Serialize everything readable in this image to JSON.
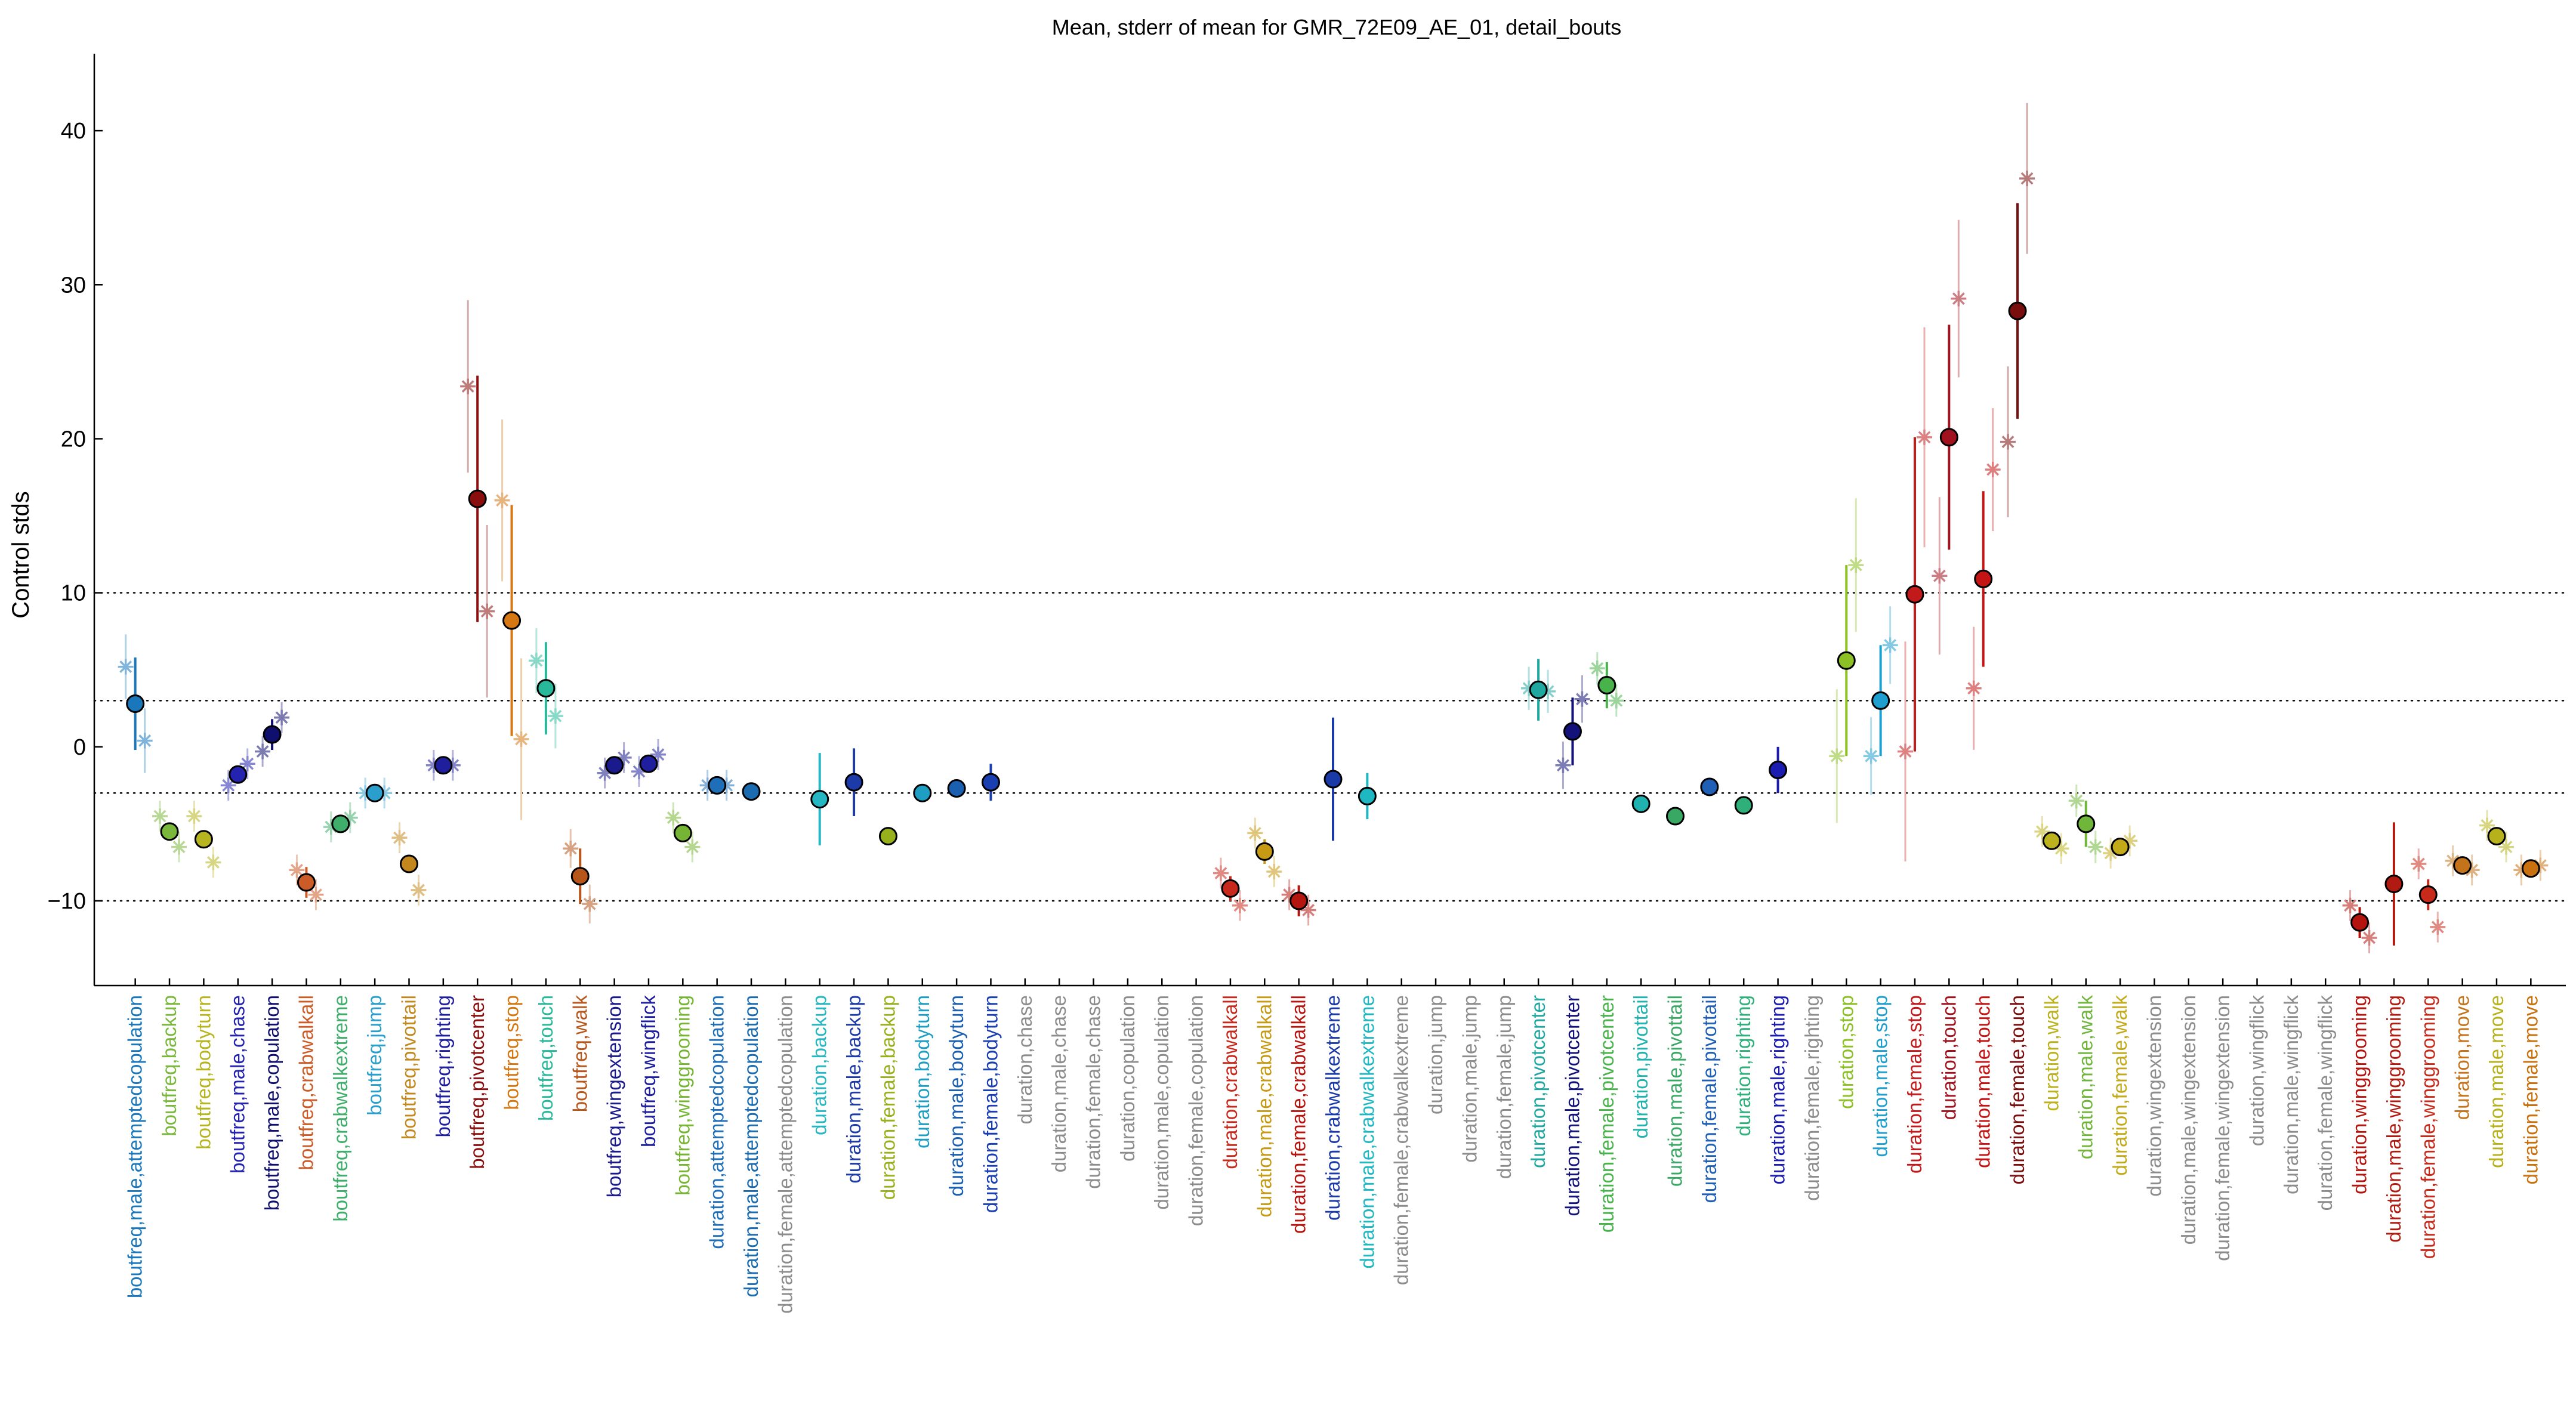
{
  "chart_data": {
    "type": "scatter",
    "title": "Mean, stderr of mean for GMR_72E09_AE_01, detail_bouts",
    "ylabel": "Control stds",
    "xlabel": "",
    "ylim": [
      -15.5,
      45
    ],
    "yticks": [
      -10,
      0,
      10,
      20,
      30,
      40
    ],
    "reference_lines": [
      -10,
      -3,
      3,
      10
    ],
    "grid": false,
    "legend": "none",
    "categories": [
      {
        "label": "boutfreq,male,attemptedcopulation",
        "color": "#1a77bb",
        "mean": 2.8,
        "err": 3.0,
        "male": 5.2,
        "female": 0.4
      },
      {
        "label": "boutfreq,backup",
        "color": "#7ab83c",
        "mean": -5.5,
        "err": 0.4,
        "male": -4.5,
        "female": -6.5
      },
      {
        "label": "boutfreq,bodyturn",
        "color": "#b7b51f",
        "mean": -6.0,
        "err": 0.4,
        "male": -4.5,
        "female": -7.5
      },
      {
        "label": "boutfreq,male,chase",
        "color": "#2323b0",
        "mean": -1.8,
        "err": 0.2,
        "male": -2.5,
        "female": -1.1
      },
      {
        "label": "boutfreq,male,copulation",
        "color": "#0f0f6e",
        "mean": 0.8,
        "err": 1.0,
        "male": -0.3,
        "female": 1.9
      },
      {
        "label": "boutfreq,crabwalkall",
        "color": "#cc5c27",
        "mean": -8.8,
        "err": 1.0,
        "male": -8.0,
        "female": -9.6
      },
      {
        "label": "boutfreq,crabwalkextreme",
        "color": "#3fae6a",
        "mean": -5.0,
        "err": 0.2,
        "male": -5.2,
        "female": -4.6
      },
      {
        "label": "boutfreq,jump",
        "color": "#2a9fcd",
        "mean": -3.0,
        "err": 0.1,
        "male": -3.0,
        "female": -3.0
      },
      {
        "label": "boutfreq,pivottail",
        "color": "#c2881e",
        "mean": -7.6,
        "err": 0.3,
        "male": -5.9,
        "female": -9.3
      },
      {
        "label": "boutfreq,righting",
        "color": "#1f1f9e",
        "mean": -1.2,
        "err": 0.2,
        "male": -1.2,
        "female": -1.2
      },
      {
        "label": "boutfreq,pivotcenter",
        "color": "#8b0e0e",
        "mean": 16.1,
        "err": 8.0,
        "male": 23.4,
        "female": 8.8
      },
      {
        "label": "boutfreq,stop",
        "color": "#d57713",
        "mean": 8.2,
        "err": 7.5,
        "male": 16.0,
        "female": 0.5
      },
      {
        "label": "boutfreq,touch",
        "color": "#27b99a",
        "mean": 3.8,
        "err": 3.0,
        "male": 5.6,
        "female": 2.0
      },
      {
        "label": "boutfreq,walk",
        "color": "#b7561b",
        "mean": -8.4,
        "err": 1.8,
        "male": -6.6,
        "female": -10.2
      },
      {
        "label": "boutfreq,wingextension",
        "color": "#1a1a8c",
        "mean": -1.2,
        "err": 0.3,
        "male": -1.7,
        "female": -0.7
      },
      {
        "label": "boutfreq,wingflick",
        "color": "#1f1f9e",
        "mean": -1.1,
        "err": 0.5,
        "male": -1.6,
        "female": -0.5
      },
      {
        "label": "boutfreq,winggrooming",
        "color": "#76b534",
        "mean": -5.6,
        "err": 0.4,
        "male": -4.6,
        "female": -6.5
      },
      {
        "label": "duration,attemptedcopulation",
        "color": "#1f6fb8",
        "mean": -2.5,
        "err": 0.2,
        "male": -2.5,
        "female": -2.5
      },
      {
        "label": "duration,male,attemptedcopulation",
        "color": "#1b6bb0",
        "mean": -2.9,
        "err": 0.1,
        "male": null,
        "female": null
      },
      {
        "label": "duration,female,attemptedcopulation",
        "color": "#8c8c8c",
        "mean": null,
        "err": null,
        "male": null,
        "female": null
      },
      {
        "label": "duration,backup",
        "color": "#26b7c2",
        "mean": -3.4,
        "err": 3.0,
        "male": null,
        "female": null
      },
      {
        "label": "duration,male,backup",
        "color": "#1c3aa8",
        "mean": -2.3,
        "err": 2.2,
        "male": null,
        "female": null
      },
      {
        "label": "duration,female,backup",
        "color": "#97b11c",
        "mean": -5.8,
        "err": 0.2,
        "male": null,
        "female": null
      },
      {
        "label": "duration,bodyturn",
        "color": "#1f9ec4",
        "mean": -3.0,
        "err": 0.5,
        "male": null,
        "female": null
      },
      {
        "label": "duration,male,bodyturn",
        "color": "#1b5fb0",
        "mean": -2.7,
        "err": 0.5,
        "male": null,
        "female": null
      },
      {
        "label": "duration,female,bodyturn",
        "color": "#1a3fb0",
        "mean": -2.3,
        "err": 1.2,
        "male": null,
        "female": null
      },
      {
        "label": "duration,chase",
        "color": "#8c8c8c",
        "mean": null,
        "err": null,
        "male": null,
        "female": null
      },
      {
        "label": "duration,male,chase",
        "color": "#8c8c8c",
        "mean": null,
        "err": null,
        "male": null,
        "female": null
      },
      {
        "label": "duration,female,chase",
        "color": "#8c8c8c",
        "mean": null,
        "err": null,
        "male": null,
        "female": null
      },
      {
        "label": "duration,copulation",
        "color": "#8c8c8c",
        "mean": null,
        "err": null,
        "male": null,
        "female": null
      },
      {
        "label": "duration,male,copulation",
        "color": "#8c8c8c",
        "mean": null,
        "err": null,
        "male": null,
        "female": null
      },
      {
        "label": "duration,female,copulation",
        "color": "#8c8c8c",
        "mean": null,
        "err": null,
        "male": null,
        "female": null
      },
      {
        "label": "duration,crabwalkall",
        "color": "#c72a1c",
        "mean": -9.2,
        "err": 0.8,
        "male": -8.2,
        "female": -10.3
      },
      {
        "label": "duration,male,crabwalkall",
        "color": "#c69a12",
        "mean": -6.8,
        "err": 0.8,
        "male": -5.6,
        "female": -8.1
      },
      {
        "label": "duration,female,crabwalkall",
        "color": "#b5150f",
        "mean": -10.0,
        "err": 1.0,
        "male": -9.6,
        "female": -10.6
      },
      {
        "label": "duration,crabwalkextreme",
        "color": "#1a3aa8",
        "mean": -2.1,
        "err": 4.0,
        "male": null,
        "female": null
      },
      {
        "label": "duration,male,crabwalkextreme",
        "color": "#1fb7c2",
        "mean": -3.2,
        "err": 1.5,
        "male": null,
        "female": null
      },
      {
        "label": "duration,female,crabwalkextreme",
        "color": "#8c8c8c",
        "mean": null,
        "err": null,
        "male": null,
        "female": null
      },
      {
        "label": "duration,jump",
        "color": "#8c8c8c",
        "mean": null,
        "err": null,
        "male": null,
        "female": null
      },
      {
        "label": "duration,male,jump",
        "color": "#8c8c8c",
        "mean": null,
        "err": null,
        "male": null,
        "female": null
      },
      {
        "label": "duration,female,jump",
        "color": "#8c8c8c",
        "mean": null,
        "err": null,
        "male": null,
        "female": null
      },
      {
        "label": "duration,pivotcenter",
        "color": "#1fa7a0",
        "mean": 3.7,
        "err": 2.0,
        "male": 3.8,
        "female": 3.6
      },
      {
        "label": "duration,male,pivotcenter",
        "color": "#12127a",
        "mean": 1.0,
        "err": 2.2,
        "male": -1.2,
        "female": 3.1
      },
      {
        "label": "duration,female,pivotcenter",
        "color": "#49b34b",
        "mean": 4.0,
        "err": 1.5,
        "male": 5.1,
        "female": 3.0
      },
      {
        "label": "duration,pivottail",
        "color": "#1fb2ae",
        "mean": -3.7,
        "err": 0.2,
        "male": null,
        "female": null
      },
      {
        "label": "duration,male,pivottail",
        "color": "#3aa865",
        "mean": -4.5,
        "err": 0.2,
        "male": null,
        "female": null
      },
      {
        "label": "duration,female,pivottail",
        "color": "#1f5fb5",
        "mean": -2.6,
        "err": 0.3,
        "male": null,
        "female": null
      },
      {
        "label": "duration,righting",
        "color": "#2fb07a",
        "mean": -3.8,
        "err": 0.2,
        "male": null,
        "female": null
      },
      {
        "label": "duration,male,righting",
        "color": "#1c1cb0",
        "mean": -1.5,
        "err": 1.5,
        "male": null,
        "female": null
      },
      {
        "label": "duration,female,righting",
        "color": "#8c8c8c",
        "mean": null,
        "err": null,
        "male": null,
        "female": null
      },
      {
        "label": "duration,stop",
        "color": "#8cc025",
        "mean": 5.6,
        "err": 6.2,
        "male": -0.6,
        "female": 11.8
      },
      {
        "label": "duration,male,stop",
        "color": "#1f9fcf",
        "mean": 3.0,
        "err": 3.6,
        "male": -0.6,
        "female": 6.6
      },
      {
        "label": "duration,female,stop",
        "color": "#c21a1a",
        "mean": 9.9,
        "err": 10.2,
        "male": -0.3,
        "female": 20.1
      },
      {
        "label": "duration,touch",
        "color": "#a0121e",
        "mean": 20.1,
        "err": 7.3,
        "male": 11.1,
        "female": 29.1
      },
      {
        "label": "duration,male,touch",
        "color": "#c41414",
        "mean": 10.9,
        "err": 5.7,
        "male": 3.8,
        "female": 18.0
      },
      {
        "label": "duration,female,touch",
        "color": "#7a0d0d",
        "mean": 28.3,
        "err": 7.0,
        "male": 19.8,
        "female": 36.9
      },
      {
        "label": "duration,walk",
        "color": "#bbb21e",
        "mean": -6.1,
        "err": 0.5,
        "male": -5.5,
        "female": -6.6
      },
      {
        "label": "duration,male,walk",
        "color": "#6fb63a",
        "mean": -5.0,
        "err": 1.5,
        "male": -3.5,
        "female": -6.5
      },
      {
        "label": "duration,female,walk",
        "color": "#c2aa18",
        "mean": -6.5,
        "err": 0.4,
        "male": -6.9,
        "female": -6.1
      },
      {
        "label": "duration,wingextension",
        "color": "#8c8c8c",
        "mean": null,
        "err": null,
        "male": null,
        "female": null
      },
      {
        "label": "duration,male,wingextension",
        "color": "#8c8c8c",
        "mean": null,
        "err": null,
        "male": null,
        "female": null
      },
      {
        "label": "duration,female,wingextension",
        "color": "#8c8c8c",
        "mean": null,
        "err": null,
        "male": null,
        "female": null
      },
      {
        "label": "duration,wingflick",
        "color": "#8c8c8c",
        "mean": null,
        "err": null,
        "male": null,
        "female": null
      },
      {
        "label": "duration,male,wingflick",
        "color": "#8c8c8c",
        "mean": null,
        "err": null,
        "male": null,
        "female": null
      },
      {
        "label": "duration,female,wingflick",
        "color": "#8c8c8c",
        "mean": null,
        "err": null,
        "male": null,
        "female": null
      },
      {
        "label": "duration,winggrooming",
        "color": "#b3140e",
        "mean": -11.4,
        "err": 1.0,
        "male": -10.3,
        "female": -12.4
      },
      {
        "label": "duration,male,winggrooming",
        "color": "#b01a10",
        "mean": -8.9,
        "err": 4.0,
        "male": null,
        "female": null
      },
      {
        "label": "duration,female,winggrooming",
        "color": "#c7291a",
        "mean": -9.6,
        "err": 1.0,
        "male": -7.6,
        "female": -11.7
      },
      {
        "label": "duration,move",
        "color": "#c5731a",
        "mean": -7.7,
        "err": 0.3,
        "male": -7.4,
        "female": -8.0
      },
      {
        "label": "duration,male,move",
        "color": "#b7b21c",
        "mean": -5.8,
        "err": 0.4,
        "male": -5.1,
        "female": -6.5
      },
      {
        "label": "duration,female,move",
        "color": "#c9700f",
        "mean": -7.9,
        "err": 0.2,
        "male": -8.0,
        "female": -7.7
      }
    ]
  }
}
